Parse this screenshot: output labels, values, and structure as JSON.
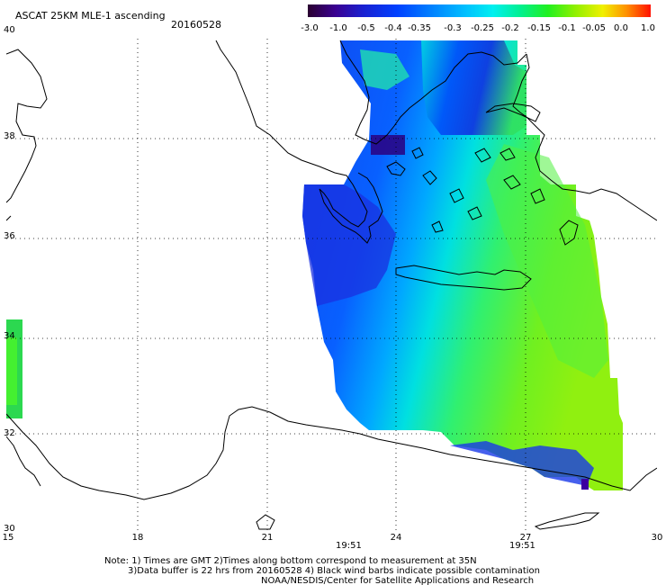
{
  "header": {
    "title": "ASCAT 25KM MLE-1 ascending",
    "date": "20160528"
  },
  "colorbar": {
    "labels": [
      "-3.0",
      "-1.0",
      "-0.5",
      "-0.4",
      "-0.35",
      "-0.3",
      "-0.25",
      "-0.2",
      "-0.15",
      "-0.1",
      "-0.05",
      "0.0",
      "1.0"
    ],
    "colors": [
      "#2a0030",
      "#3a0090",
      "#1a20d0",
      "#0040ff",
      "#0080ff",
      "#00c0ff",
      "#00f0f0",
      "#00f090",
      "#20f020",
      "#90f000",
      "#f0f000",
      "#ff9000",
      "#ff1000"
    ]
  },
  "axes": {
    "x_ticks": [
      "15",
      "18",
      "21",
      "24",
      "27",
      "30"
    ],
    "y_ticks": [
      "40",
      "38",
      "36",
      "34",
      "32",
      "30"
    ]
  },
  "times": [
    "19:51",
    "19:51"
  ],
  "notes": {
    "line1": "Note: 1) Times are GMT 2)Times along bottom correspond to measurement at 35N",
    "line2": "3)Data buffer is 22 hrs from 20160528 4) Black wind barbs indicate possible contamination",
    "line3": "NOAA/NESDIS/Center for Satellite Applications and Research"
  },
  "colors": {
    "time_label": "#cc2200"
  }
}
